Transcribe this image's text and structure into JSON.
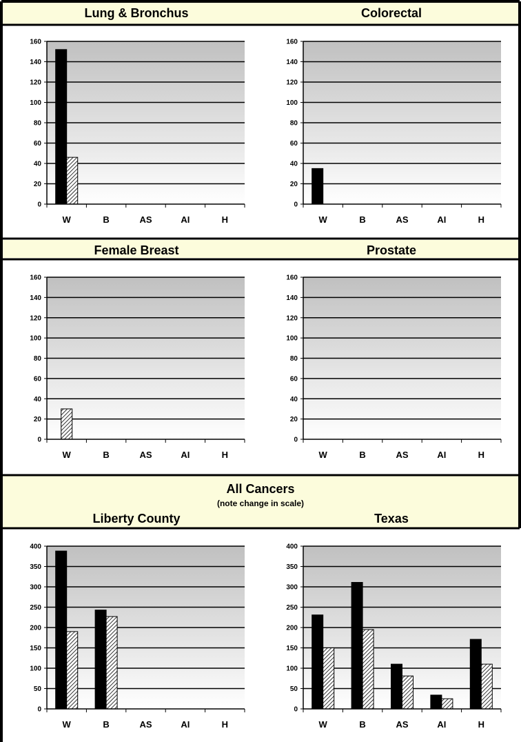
{
  "sections": {
    "row1_left_title": "Lung & Bronchus",
    "row1_right_title": "Colorectal",
    "row2_left_title": "Female Breast",
    "row2_right_title": "Prostate",
    "all_title": "All Cancers",
    "all_subtitle": "(note change in scale)",
    "row3_left_title": "Liberty County",
    "row3_right_title": "Texas"
  },
  "colors": {
    "header_bg": "#fcfcdc",
    "bar_dark": "#000000",
    "plot_top": "#c0c0c0",
    "plot_bottom": "#ffffff"
  },
  "chart_data": [
    {
      "id": "lung",
      "type": "bar",
      "categories": [
        "W",
        "B",
        "AS",
        "AI",
        "H"
      ],
      "ylim": [
        0,
        160
      ],
      "ytick_step": 20,
      "grid": true,
      "series": [
        {
          "style": "solid",
          "values": [
            152,
            0,
            0,
            0,
            0
          ]
        },
        {
          "style": "hatched",
          "values": [
            46,
            0,
            0,
            0,
            0
          ]
        }
      ]
    },
    {
      "id": "colorectal",
      "type": "bar",
      "categories": [
        "W",
        "B",
        "AS",
        "AI",
        "H"
      ],
      "ylim": [
        0,
        160
      ],
      "ytick_step": 20,
      "grid": true,
      "series": [
        {
          "style": "solid",
          "values": [
            35,
            0,
            0,
            0,
            0
          ]
        },
        {
          "style": "hatched",
          "values": [
            0,
            0,
            0,
            0,
            0
          ]
        }
      ]
    },
    {
      "id": "breast",
      "type": "bar",
      "categories": [
        "W",
        "B",
        "AS",
        "AI",
        "H"
      ],
      "ylim": [
        0,
        160
      ],
      "ytick_step": 20,
      "grid": true,
      "series": [
        {
          "style": "hatched",
          "values": [
            30,
            0,
            0,
            0,
            0
          ]
        }
      ]
    },
    {
      "id": "prostate",
      "type": "bar",
      "categories": [
        "W",
        "B",
        "AS",
        "AI",
        "H"
      ],
      "ylim": [
        0,
        160
      ],
      "ytick_step": 20,
      "grid": true,
      "series": [
        {
          "style": "solid",
          "values": [
            0,
            0,
            0,
            0,
            0
          ]
        }
      ]
    },
    {
      "id": "all_liberty",
      "type": "bar",
      "categories": [
        "W",
        "B",
        "AS",
        "AI",
        "H"
      ],
      "ylim": [
        0,
        400
      ],
      "ytick_step": 50,
      "grid": true,
      "series": [
        {
          "style": "solid",
          "values": [
            388,
            243,
            0,
            0,
            0
          ]
        },
        {
          "style": "hatched",
          "values": [
            190,
            227,
            0,
            0,
            0
          ]
        }
      ]
    },
    {
      "id": "all_texas",
      "type": "bar",
      "categories": [
        "W",
        "B",
        "AS",
        "AI",
        "H"
      ],
      "ylim": [
        0,
        400
      ],
      "ytick_step": 50,
      "grid": true,
      "series": [
        {
          "style": "solid",
          "values": [
            231,
            311,
            110,
            34,
            171
          ]
        },
        {
          "style": "hatched",
          "values": [
            150,
            195,
            81,
            25,
            110
          ]
        }
      ]
    }
  ]
}
